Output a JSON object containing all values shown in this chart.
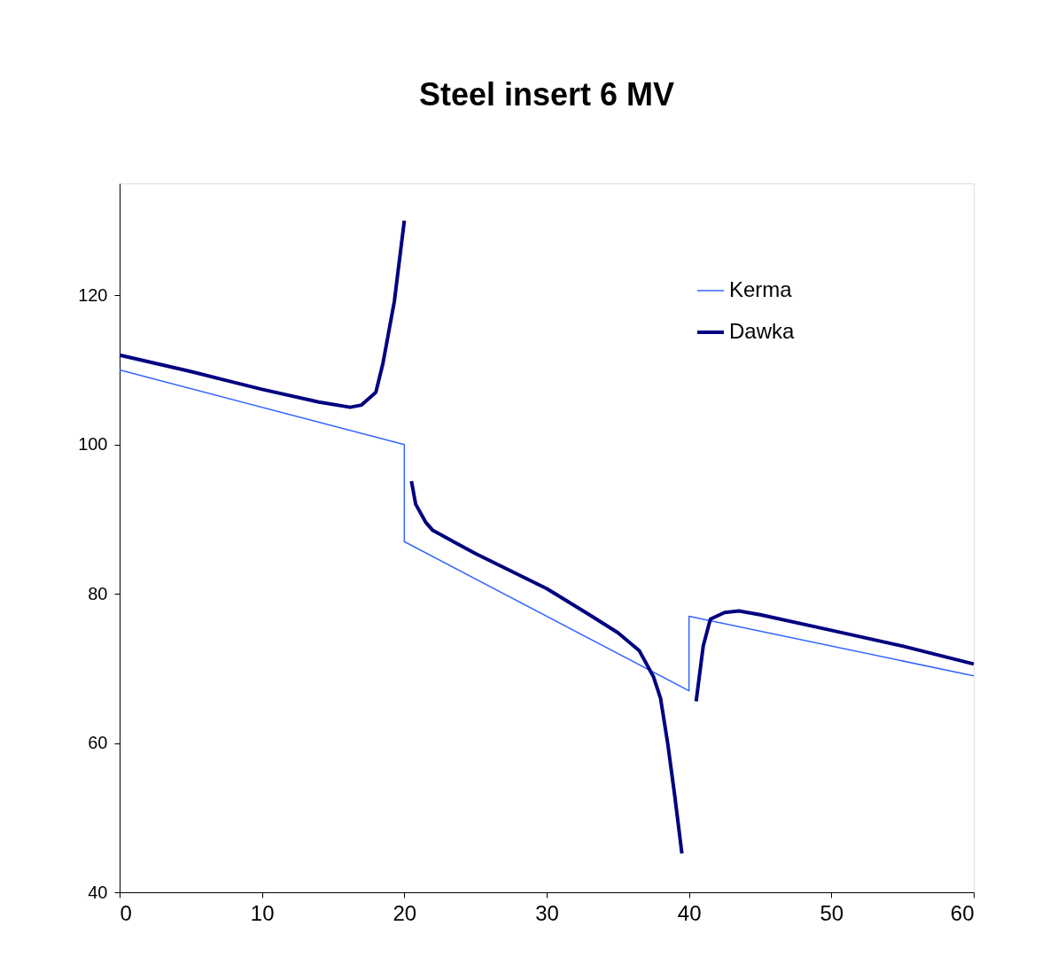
{
  "chart_data": {
    "type": "line",
    "title": "Steel insert 6 MV",
    "xlim": [
      0,
      60
    ],
    "xticks": [
      0,
      10,
      20,
      30,
      40,
      50,
      60
    ],
    "ylim": [
      40,
      135
    ],
    "yticks": [
      40,
      60,
      80,
      100,
      120
    ],
    "grid": false,
    "legend": "top right",
    "marker": "none",
    "line_style": "solid",
    "series": [
      {
        "name": "Kerma",
        "color": "#3366ff",
        "x": [
          0,
          20,
          20,
          40,
          40,
          60
        ],
        "values": [
          110,
          100,
          87,
          67,
          77,
          69
        ]
      },
      {
        "name": "Dawka",
        "color": "#000080",
        "x": [
          0,
          5,
          10,
          14,
          16.2,
          17,
          18,
          18.5,
          19.3,
          20,
          20.2,
          20.5,
          20.8,
          21.5,
          22,
          25,
          30,
          33,
          35,
          36.5,
          37.5,
          38,
          38.5,
          39,
          39.5,
          40,
          40.5,
          41,
          41.5,
          42.5,
          43.5,
          45,
          50,
          55,
          60
        ],
        "values": [
          112,
          109.8,
          107.4,
          105.7,
          105,
          105.3,
          107,
          110.9,
          119.2,
          130,
          null,
          95.1,
          92,
          89.6,
          88.5,
          85.4,
          80.7,
          77.2,
          74.8,
          72.4,
          68.9,
          66,
          60,
          52.9,
          45.2,
          null,
          65.6,
          73,
          76.6,
          77.5,
          77.7,
          77.2,
          75.1,
          73,
          70.6
        ]
      }
    ]
  }
}
